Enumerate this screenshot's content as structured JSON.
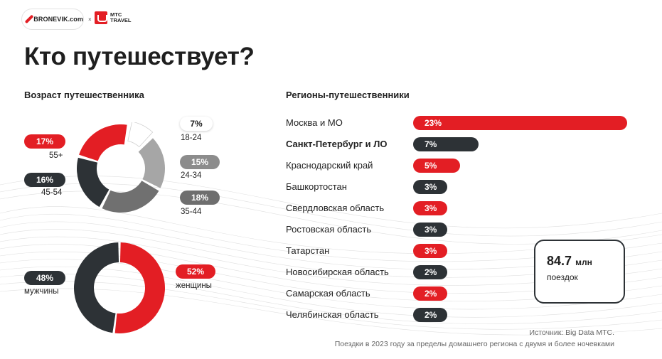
{
  "header": {
    "logo_bronevik": "BRONEVIK.com",
    "separator": "×",
    "logo_mts": "МТС TRAVEL"
  },
  "title": "Кто путешествует?",
  "colors": {
    "red": "#e31e24",
    "dark": "#2d3236",
    "gray": "#8c8c8c",
    "light": "#ffffff"
  },
  "chart_data": [
    {
      "type": "pie",
      "title": "Возраст путешественника",
      "slices": [
        {
          "label": "18-24",
          "value": 7,
          "display": "7%",
          "color": "#ffffff"
        },
        {
          "label": "24-34",
          "value": 15,
          "display": "15%",
          "color": "#a6a6a6"
        },
        {
          "label": "35-44",
          "value": 18,
          "display": "18%",
          "color": "#707070"
        },
        {
          "label": "45-54",
          "value": 16,
          "display": "16%",
          "color": "#2d3236"
        },
        {
          "label": "55+",
          "value": 17,
          "display": "17%",
          "color": "#e31e24"
        }
      ]
    },
    {
      "type": "pie",
      "title": "",
      "slices": [
        {
          "label": "женщины",
          "value": 52,
          "display": "52%",
          "color": "#e31e24"
        },
        {
          "label": "мужчины",
          "value": 48,
          "display": "48%",
          "color": "#2d3236"
        }
      ]
    },
    {
      "type": "bar",
      "title": "Регионы-путешественники",
      "categories": [
        "Москва и МО",
        "Санкт-Петербург и ЛО",
        "Краснодарский край",
        "Башкортостан",
        "Свердловская область",
        "Ростовская область",
        "Татарстан",
        "Новосибирская область",
        "Самарская область",
        "Челябинская область"
      ],
      "values": [
        23,
        7,
        5,
        3,
        3,
        3,
        3,
        2,
        2,
        2
      ],
      "labels": [
        "23%",
        "7%",
        "5%",
        "3%",
        "3%",
        "3%",
        "3%",
        "2%",
        "2%",
        "2%"
      ],
      "colors": [
        "red",
        "dark",
        "red",
        "dark",
        "red",
        "dark",
        "red",
        "dark",
        "red",
        "dark"
      ],
      "bold": [
        false,
        true,
        false,
        false,
        false,
        false,
        false,
        false,
        false,
        false
      ]
    }
  ],
  "total": {
    "value": "84.7",
    "unit": "млн",
    "label": "поездок"
  },
  "footnote": {
    "source": "Источник: Big Data МТС.",
    "note": "Поездки в 2023 году за пределы домашнего региона с двумя и более ночевками"
  }
}
